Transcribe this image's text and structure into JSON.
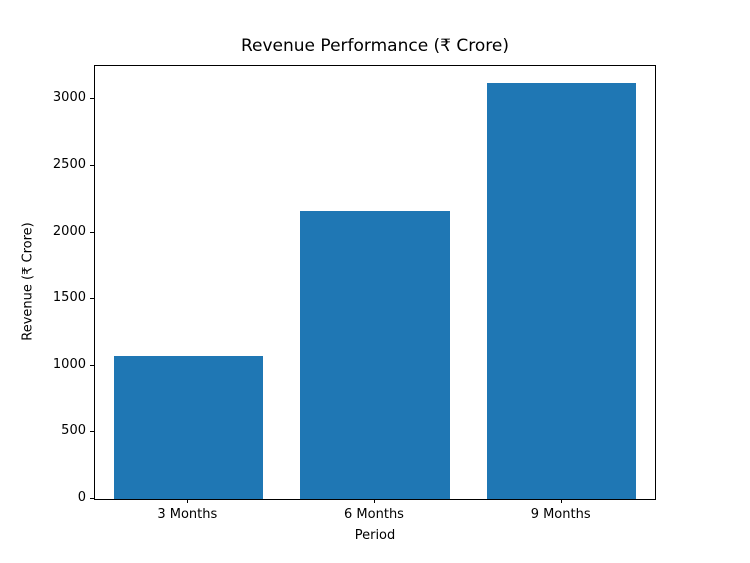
{
  "chart_data": {
    "type": "bar",
    "title": "Revenue Performance (₹ Crore)",
    "xlabel": "Period",
    "ylabel": "Revenue (₹ Crore)",
    "categories": [
      "3 Months",
      "6 Months",
      "9 Months"
    ],
    "values": [
      1075,
      2160,
      3125
    ],
    "ylim": [
      0,
      3250
    ],
    "yticks": [
      0,
      500,
      1000,
      1500,
      2000,
      2500,
      3000
    ],
    "bar_color": "#1f77b4",
    "bar_width_fraction": 0.8,
    "grid": false,
    "legend": null,
    "background_color": "#ffffff",
    "spine_color": "#000000"
  }
}
